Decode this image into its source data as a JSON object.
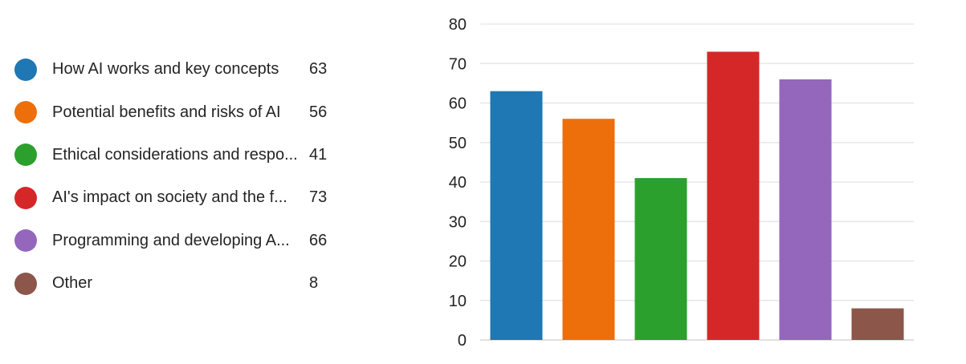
{
  "legend": {
    "items": [
      {
        "label": "How AI works and key concepts",
        "count": "63",
        "color": "#1f77b4"
      },
      {
        "label": "Potential benefits and risks of AI",
        "count": "56",
        "color": "#ed6f0b"
      },
      {
        "label": "Ethical considerations and respo...",
        "count": "41",
        "color": "#2ca02c"
      },
      {
        "label": "AI's impact on society and the f...",
        "count": "73",
        "color": "#d62728"
      },
      {
        "label": "Programming and developing A...",
        "count": "66",
        "color": "#9467bd"
      },
      {
        "label": "Other",
        "count": "8",
        "color": "#8c564b"
      }
    ]
  },
  "chart_data": {
    "type": "bar",
    "categories": [
      "How AI works and key concepts",
      "Potential benefits and risks of AI",
      "Ethical considerations and respo...",
      "AI's impact on society and the f...",
      "Programming and developing A...",
      "Other"
    ],
    "values": [
      63,
      56,
      41,
      73,
      66,
      8
    ],
    "colors": [
      "#1f77b4",
      "#ed6f0b",
      "#2ca02c",
      "#d62728",
      "#9467bd",
      "#8c564b"
    ],
    "ylim": [
      0,
      80
    ],
    "yticks": [
      0,
      10,
      20,
      30,
      40,
      50,
      60,
      70,
      80
    ],
    "grid": true,
    "legend_placement": "left",
    "title": "",
    "xlabel": "",
    "ylabel": ""
  }
}
